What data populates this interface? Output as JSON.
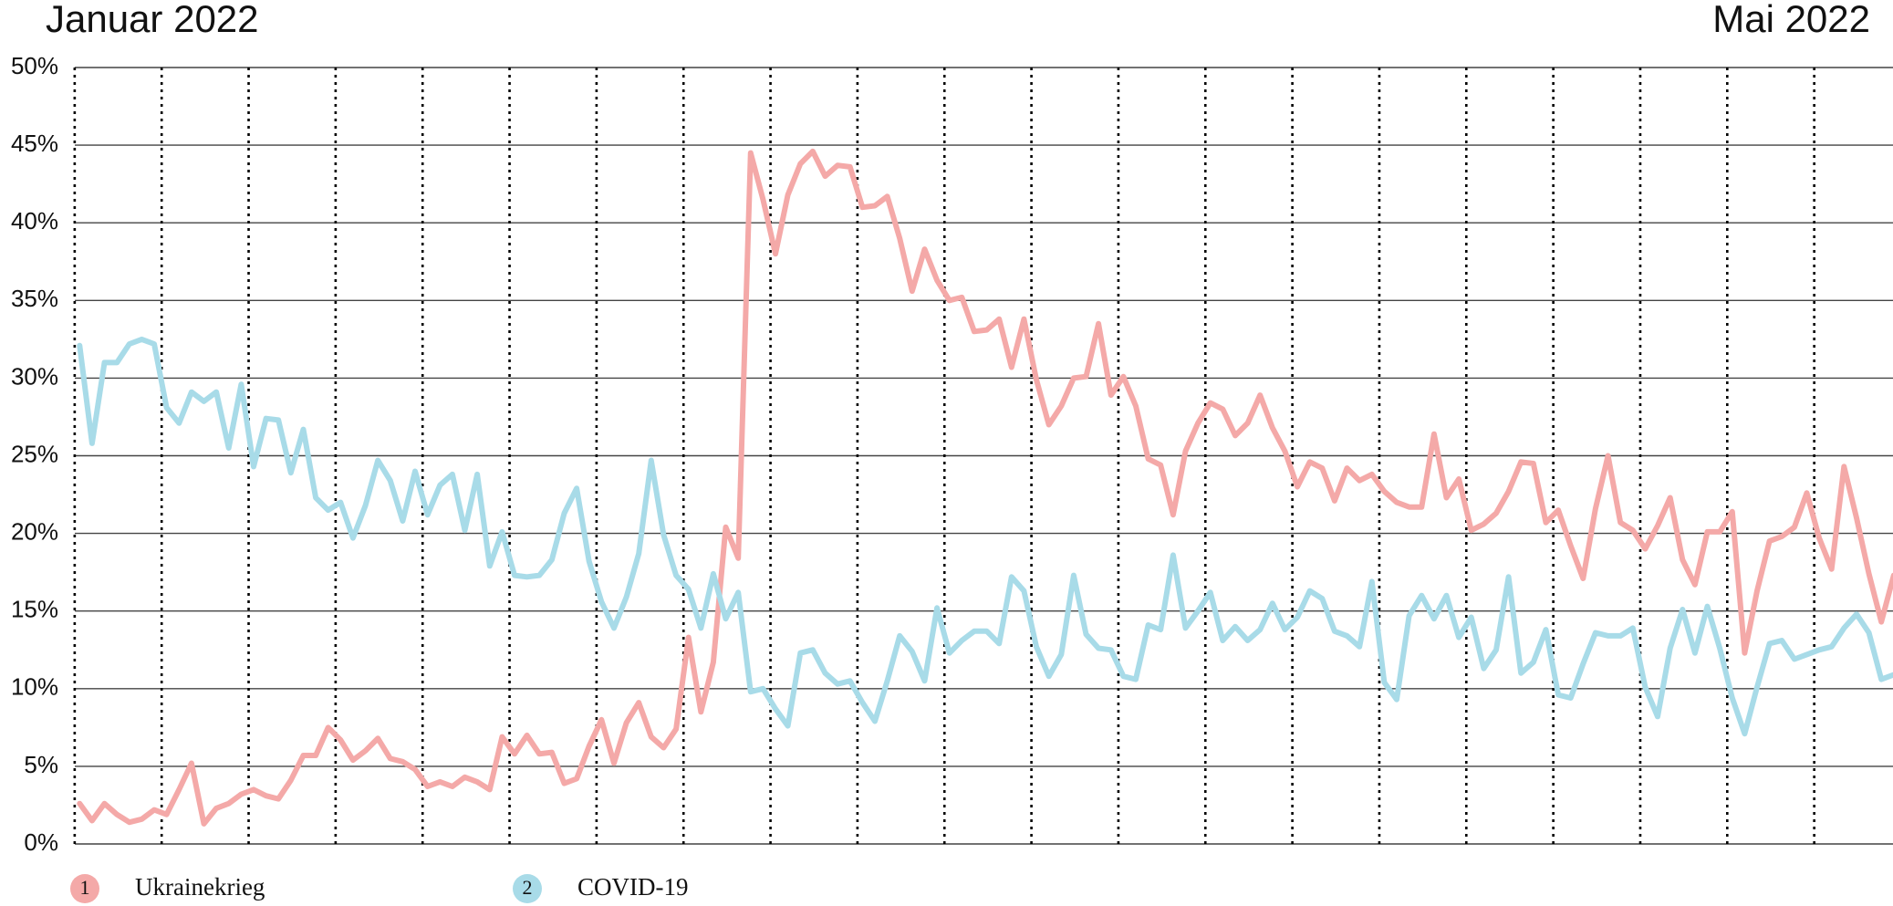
{
  "chart_data": {
    "type": "line",
    "period_labels": [
      "Januar 2022",
      "Mai 2022"
    ],
    "ylim": [
      0,
      50
    ],
    "yticks": [
      {
        "value": 0,
        "label": "0%"
      },
      {
        "value": 5,
        "label": "5%"
      },
      {
        "value": 10,
        "label": "10%"
      },
      {
        "value": 15,
        "label": "15%"
      },
      {
        "value": 20,
        "label": "20%"
      },
      {
        "value": 25,
        "label": "25%"
      },
      {
        "value": 30,
        "label": "30%"
      },
      {
        "value": 35,
        "label": "35%"
      },
      {
        "value": 40,
        "label": "40%"
      },
      {
        "value": 45,
        "label": "45%"
      },
      {
        "value": 50,
        "label": "50%"
      }
    ],
    "grid": true,
    "legend": "bottom",
    "series": [
      {
        "name": "Ukrainekrieg",
        "badge": "1",
        "color": "#f4a9a8",
        "values": [
          2.6,
          1.5,
          2.6,
          1.9,
          1.4,
          1.6,
          2.2,
          1.9,
          3.5,
          5.2,
          1.3,
          2.3,
          2.6,
          3.2,
          3.5,
          3.1,
          2.9,
          4.1,
          5.7,
          5.7,
          7.5,
          6.7,
          5.4,
          6.0,
          6.8,
          5.5,
          5.3,
          4.8,
          3.7,
          4.0,
          3.7,
          4.3,
          4.0,
          3.5,
          6.9,
          5.8,
          7.0,
          5.8,
          5.9,
          3.9,
          4.2,
          6.3,
          8.0,
          5.2,
          7.8,
          9.1,
          6.9,
          6.2,
          7.4,
          13.3,
          8.5,
          11.7,
          20.4,
          18.4,
          44.5,
          41.5,
          38.0,
          41.8,
          43.8,
          44.6,
          43.0,
          43.7,
          43.6,
          41.0,
          41.1,
          41.7,
          39.0,
          35.6,
          38.3,
          36.3,
          35.0,
          35.2,
          33.0,
          33.1,
          33.8,
          30.7,
          33.8,
          29.9,
          27.0,
          28.2,
          30.0,
          30.1,
          33.5,
          28.9,
          30.1,
          28.2,
          24.8,
          24.4,
          21.2,
          25.3,
          27.1,
          28.4,
          28.0,
          26.3,
          27.1,
          28.9,
          26.8,
          25.3,
          23.0,
          24.6,
          24.2,
          22.1,
          24.2,
          23.4,
          23.8,
          22.7,
          22.0,
          21.7,
          21.7,
          26.4,
          22.3,
          23.5,
          20.2,
          20.6,
          21.3,
          22.7,
          24.6,
          24.5,
          20.7,
          21.5,
          19.2,
          17.1,
          21.6,
          25.0,
          20.7,
          20.2,
          19.0,
          20.5,
          22.3,
          18.3,
          16.7,
          20.1,
          20.1,
          21.4,
          12.3,
          16.3,
          19.5,
          19.8,
          20.4,
          22.6,
          19.7,
          17.7,
          24.3,
          21.0,
          17.4,
          14.3,
          17.3
        ]
      },
      {
        "name": "COVID-19",
        "badge": "2",
        "color": "#a8dbe8",
        "values": [
          32.1,
          25.8,
          31.0,
          31.0,
          32.2,
          32.5,
          32.2,
          28.1,
          27.1,
          29.1,
          28.5,
          29.1,
          25.5,
          29.6,
          24.3,
          27.4,
          27.3,
          23.9,
          26.7,
          22.3,
          21.5,
          22.0,
          19.7,
          21.8,
          24.7,
          23.4,
          20.8,
          24.0,
          21.2,
          23.1,
          23.8,
          20.2,
          23.8,
          17.9,
          20.1,
          17.3,
          17.2,
          17.3,
          18.3,
          21.3,
          22.9,
          18.2,
          15.6,
          13.9,
          15.9,
          18.7,
          24.7,
          19.9,
          17.3,
          16.4,
          13.9,
          17.4,
          14.5,
          16.2,
          9.8,
          10.0,
          8.7,
          7.6,
          12.3,
          12.5,
          11.0,
          10.3,
          10.5,
          9.1,
          7.9,
          10.5,
          13.4,
          12.4,
          10.5,
          15.2,
          12.3,
          13.1,
          13.7,
          13.7,
          12.9,
          17.2,
          16.3,
          12.7,
          10.8,
          12.2,
          17.3,
          13.5,
          12.6,
          12.5,
          10.8,
          10.6,
          14.1,
          13.8,
          18.6,
          13.9,
          15.0,
          16.2,
          13.1,
          14.0,
          13.1,
          13.8,
          15.5,
          13.8,
          14.6,
          16.3,
          15.8,
          13.7,
          13.4,
          12.7,
          16.9,
          10.4,
          9.3,
          14.7,
          16.0,
          14.5,
          16.0,
          13.3,
          14.6,
          11.3,
          12.5,
          17.2,
          11.0,
          11.7,
          13.8,
          9.6,
          9.4,
          11.6,
          13.6,
          13.4,
          13.4,
          13.9,
          10.1,
          8.2,
          12.6,
          15.1,
          12.3,
          15.3,
          12.6,
          9.4,
          7.1,
          10.1,
          12.9,
          13.1,
          11.9,
          12.2,
          12.5,
          12.7,
          13.9,
          14.8,
          13.6,
          10.6,
          10.9
        ]
      }
    ]
  }
}
